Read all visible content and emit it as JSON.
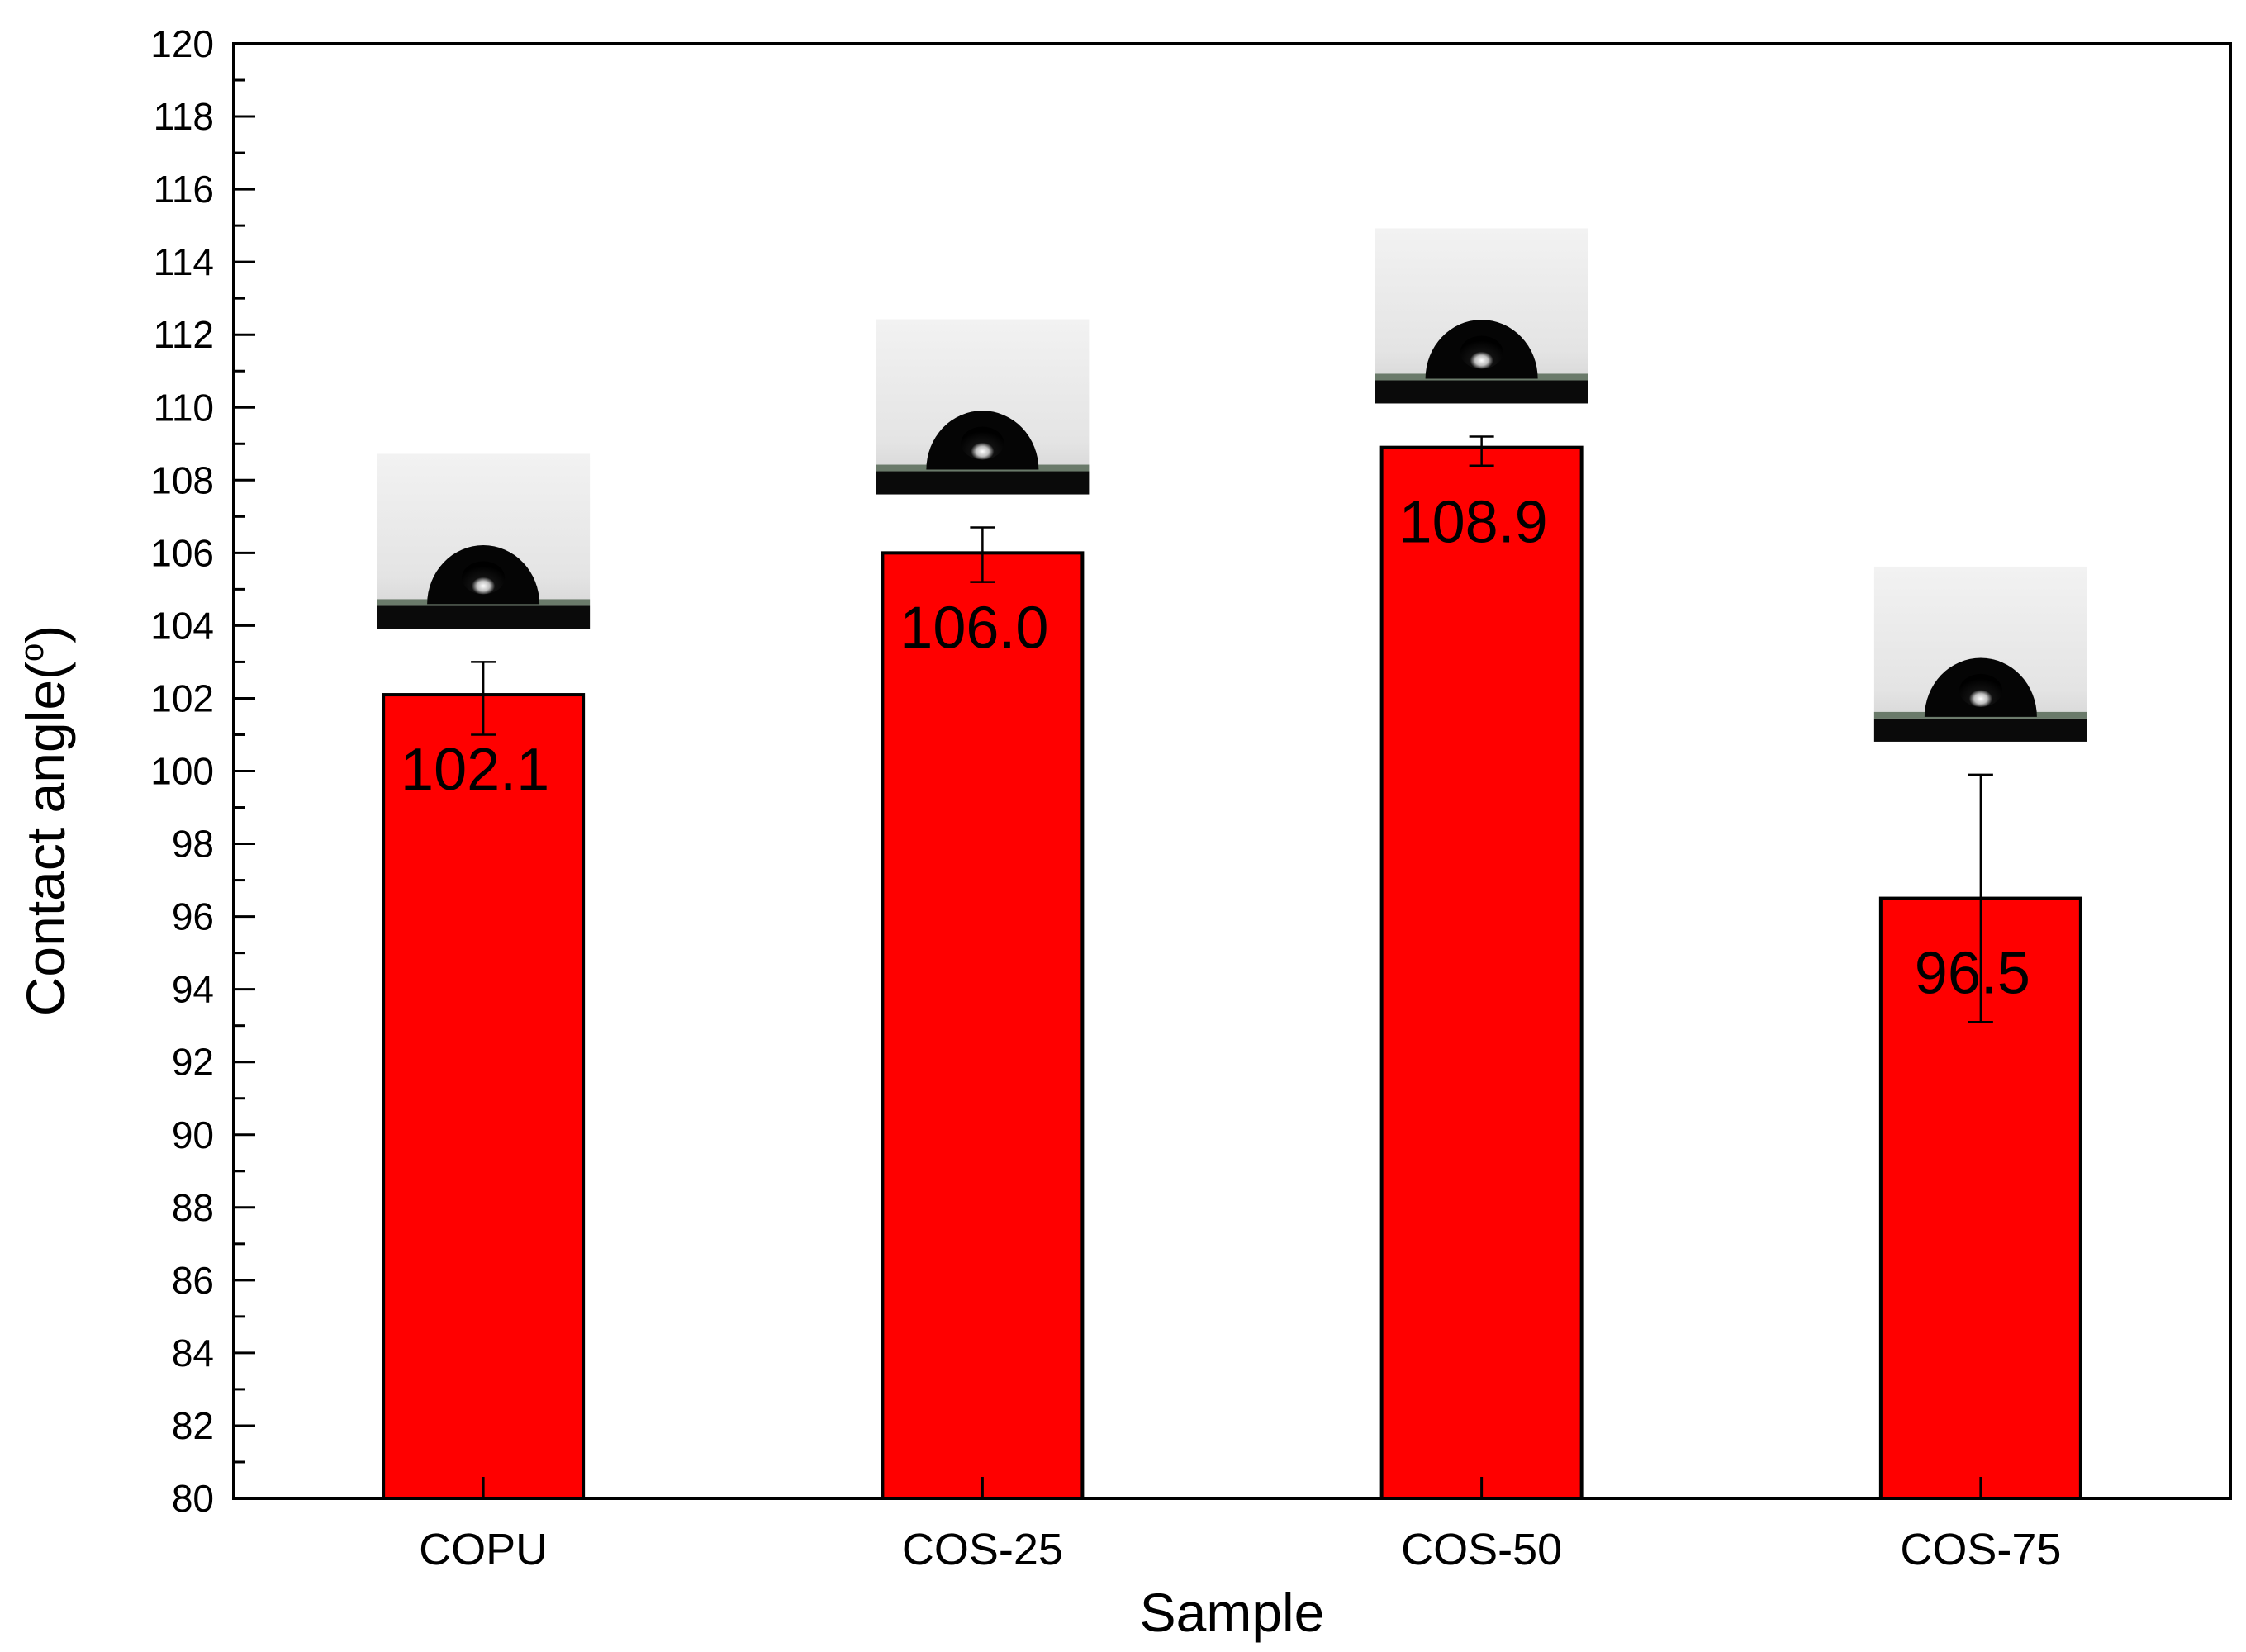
{
  "chart_data": {
    "type": "bar",
    "title": "",
    "xlabel": "Sample",
    "ylabel": "Contact angle(",
    "ylabel_sup": "o",
    "ylabel_close": ")",
    "categories": [
      "COPU",
      "COS-25",
      "COS-50",
      "COS-75"
    ],
    "values": [
      102.1,
      106.0,
      108.9,
      96.5
    ],
    "value_labels": [
      "102.1",
      "106.0",
      "108.9",
      "96.5"
    ],
    "error_low": [
      101.0,
      105.2,
      108.4,
      93.1
    ],
    "error_high": [
      103.0,
      106.7,
      109.2,
      99.9
    ],
    "ylim": [
      80,
      120
    ],
    "yticks": [
      80,
      82,
      84,
      86,
      88,
      90,
      92,
      94,
      96,
      98,
      100,
      102,
      104,
      106,
      108,
      110,
      112,
      114,
      116,
      118,
      120
    ],
    "bar_color": "#ff0000",
    "insets": [
      "water-droplet-photo",
      "water-droplet-photo",
      "water-droplet-photo",
      "water-droplet-photo"
    ],
    "grid": false,
    "legend": "none"
  }
}
